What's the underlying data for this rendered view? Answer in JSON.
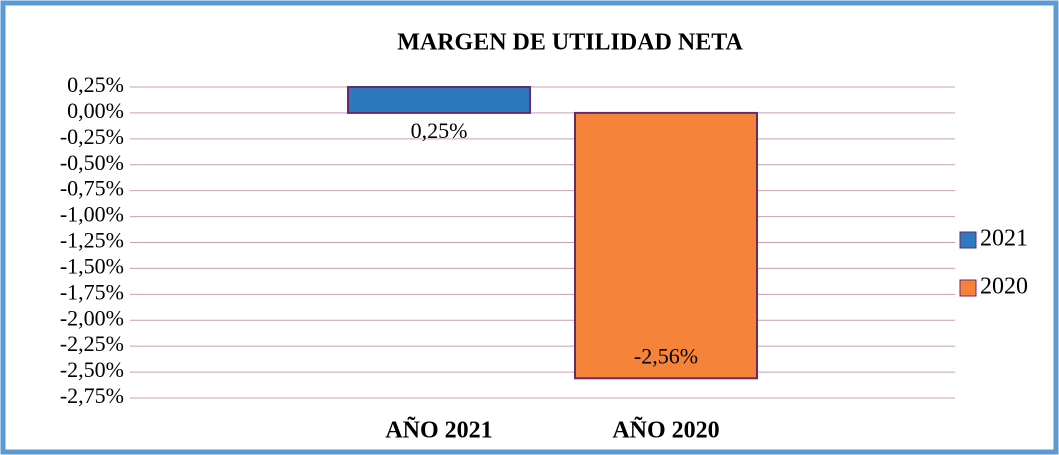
{
  "chart_data": {
    "type": "bar",
    "title": "MARGEN DE UTILIDAD NETA",
    "categories": [
      "AÑO 2021",
      "AÑO 2020"
    ],
    "series": [
      {
        "name": "2021",
        "color": "#2e78c0",
        "values": [
          0.25,
          null
        ],
        "value_labels": [
          "0,25%",
          null
        ]
      },
      {
        "name": "2020",
        "color": "#f5843a",
        "values": [
          null,
          -2.56
        ],
        "value_labels": [
          null,
          "-2,56%"
        ]
      }
    ],
    "ylim": [
      -2.75,
      0.25
    ],
    "yticks": [
      {
        "value": 0.25,
        "label": "0,25%"
      },
      {
        "value": 0,
        "label": "0,00%"
      },
      {
        "value": -0.25,
        "label": "-0,25%"
      },
      {
        "value": -0.5,
        "label": "-0,50%"
      },
      {
        "value": -0.75,
        "label": "-0,75%"
      },
      {
        "value": -1,
        "label": "-1,00%"
      },
      {
        "value": -1.25,
        "label": "-1,25%"
      },
      {
        "value": -1.5,
        "label": "-1,50%"
      },
      {
        "value": -1.75,
        "label": "-1,75%"
      },
      {
        "value": -2,
        "label": "-2,00%"
      },
      {
        "value": -2.25,
        "label": "-2,25%"
      },
      {
        "value": -2.5,
        "label": "-2,50%"
      },
      {
        "value": -2.75,
        "label": "-2,75%"
      }
    ],
    "grid": true,
    "legend": "right"
  }
}
